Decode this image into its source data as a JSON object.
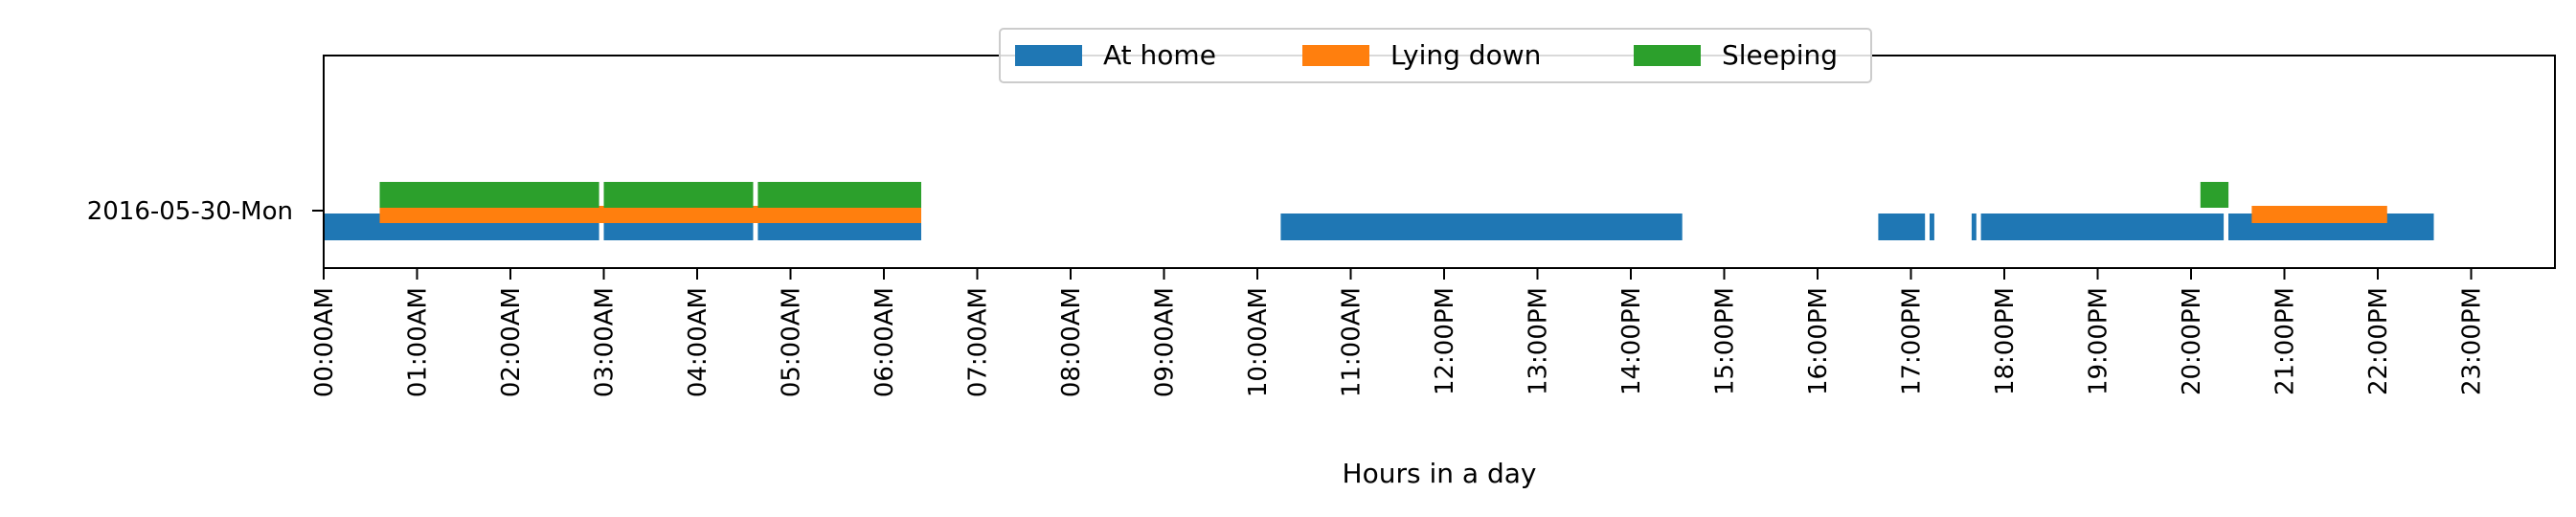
{
  "chart_data": {
    "type": "timeline",
    "title": "",
    "xlabel": "Hours in a day",
    "ylabel": "",
    "x_unit": "hours",
    "xlim": [
      0,
      24
    ],
    "x_ticks": [
      {
        "value": 0,
        "label": "00:00AM"
      },
      {
        "value": 1,
        "label": "01:00AM"
      },
      {
        "value": 2,
        "label": "02:00AM"
      },
      {
        "value": 3,
        "label": "03:00AM"
      },
      {
        "value": 4,
        "label": "04:00AM"
      },
      {
        "value": 5,
        "label": "05:00AM"
      },
      {
        "value": 6,
        "label": "06:00AM"
      },
      {
        "value": 7,
        "label": "07:00AM"
      },
      {
        "value": 8,
        "label": "08:00AM"
      },
      {
        "value": 9,
        "label": "09:00AM"
      },
      {
        "value": 10,
        "label": "10:00AM"
      },
      {
        "value": 11,
        "label": "11:00AM"
      },
      {
        "value": 12,
        "label": "12:00PM"
      },
      {
        "value": 13,
        "label": "13:00PM"
      },
      {
        "value": 14,
        "label": "14:00PM"
      },
      {
        "value": 15,
        "label": "15:00PM"
      },
      {
        "value": 16,
        "label": "16:00PM"
      },
      {
        "value": 17,
        "label": "17:00PM"
      },
      {
        "value": 18,
        "label": "18:00PM"
      },
      {
        "value": 19,
        "label": "19:00PM"
      },
      {
        "value": 20,
        "label": "20:00PM"
      },
      {
        "value": 21,
        "label": "21:00PM"
      },
      {
        "value": 22,
        "label": "22:00PM"
      },
      {
        "value": 23,
        "label": "23:00PM"
      }
    ],
    "categories": [
      "2016-05-30-Mon"
    ],
    "legend_position": "top-center",
    "grid": false,
    "series": [
      {
        "name": "At home",
        "color": "#1f77b4",
        "intervals": [
          [
            0.0,
            2.95
          ],
          [
            3.0,
            4.6
          ],
          [
            4.65,
            6.4
          ],
          [
            10.25,
            14.55
          ],
          [
            16.65,
            17.15
          ],
          [
            17.2,
            17.25
          ],
          [
            17.65,
            17.7
          ],
          [
            17.75,
            20.35
          ],
          [
            20.4,
            22.6
          ]
        ]
      },
      {
        "name": "Lying down",
        "color": "#ff7f0e",
        "intervals": [
          [
            0.6,
            6.4
          ],
          [
            20.65,
            22.1
          ]
        ]
      },
      {
        "name": "Sleeping",
        "color": "#2ca02c",
        "intervals": [
          [
            0.6,
            2.95
          ],
          [
            3.0,
            4.6
          ],
          [
            4.65,
            6.4
          ],
          [
            20.1,
            20.4
          ]
        ]
      }
    ]
  }
}
